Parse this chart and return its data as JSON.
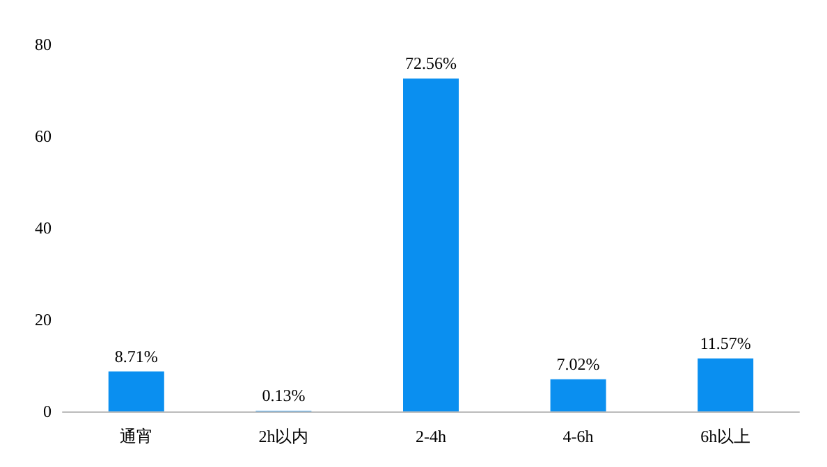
{
  "chart_data": {
    "type": "bar",
    "categories": [
      "通宵",
      "2h以内",
      "2-4h",
      "4-6h",
      "6h以上"
    ],
    "values": [
      8.71,
      0.13,
      72.56,
      7.02,
      11.57
    ],
    "value_labels": [
      "8.71%",
      "0.13%",
      "72.56%",
      "7.02%",
      "11.57%"
    ],
    "color": "#0a8ff0",
    "ylim": [
      0,
      80
    ],
    "yticks": [
      0,
      20,
      40,
      60,
      80
    ],
    "grid": false
  }
}
